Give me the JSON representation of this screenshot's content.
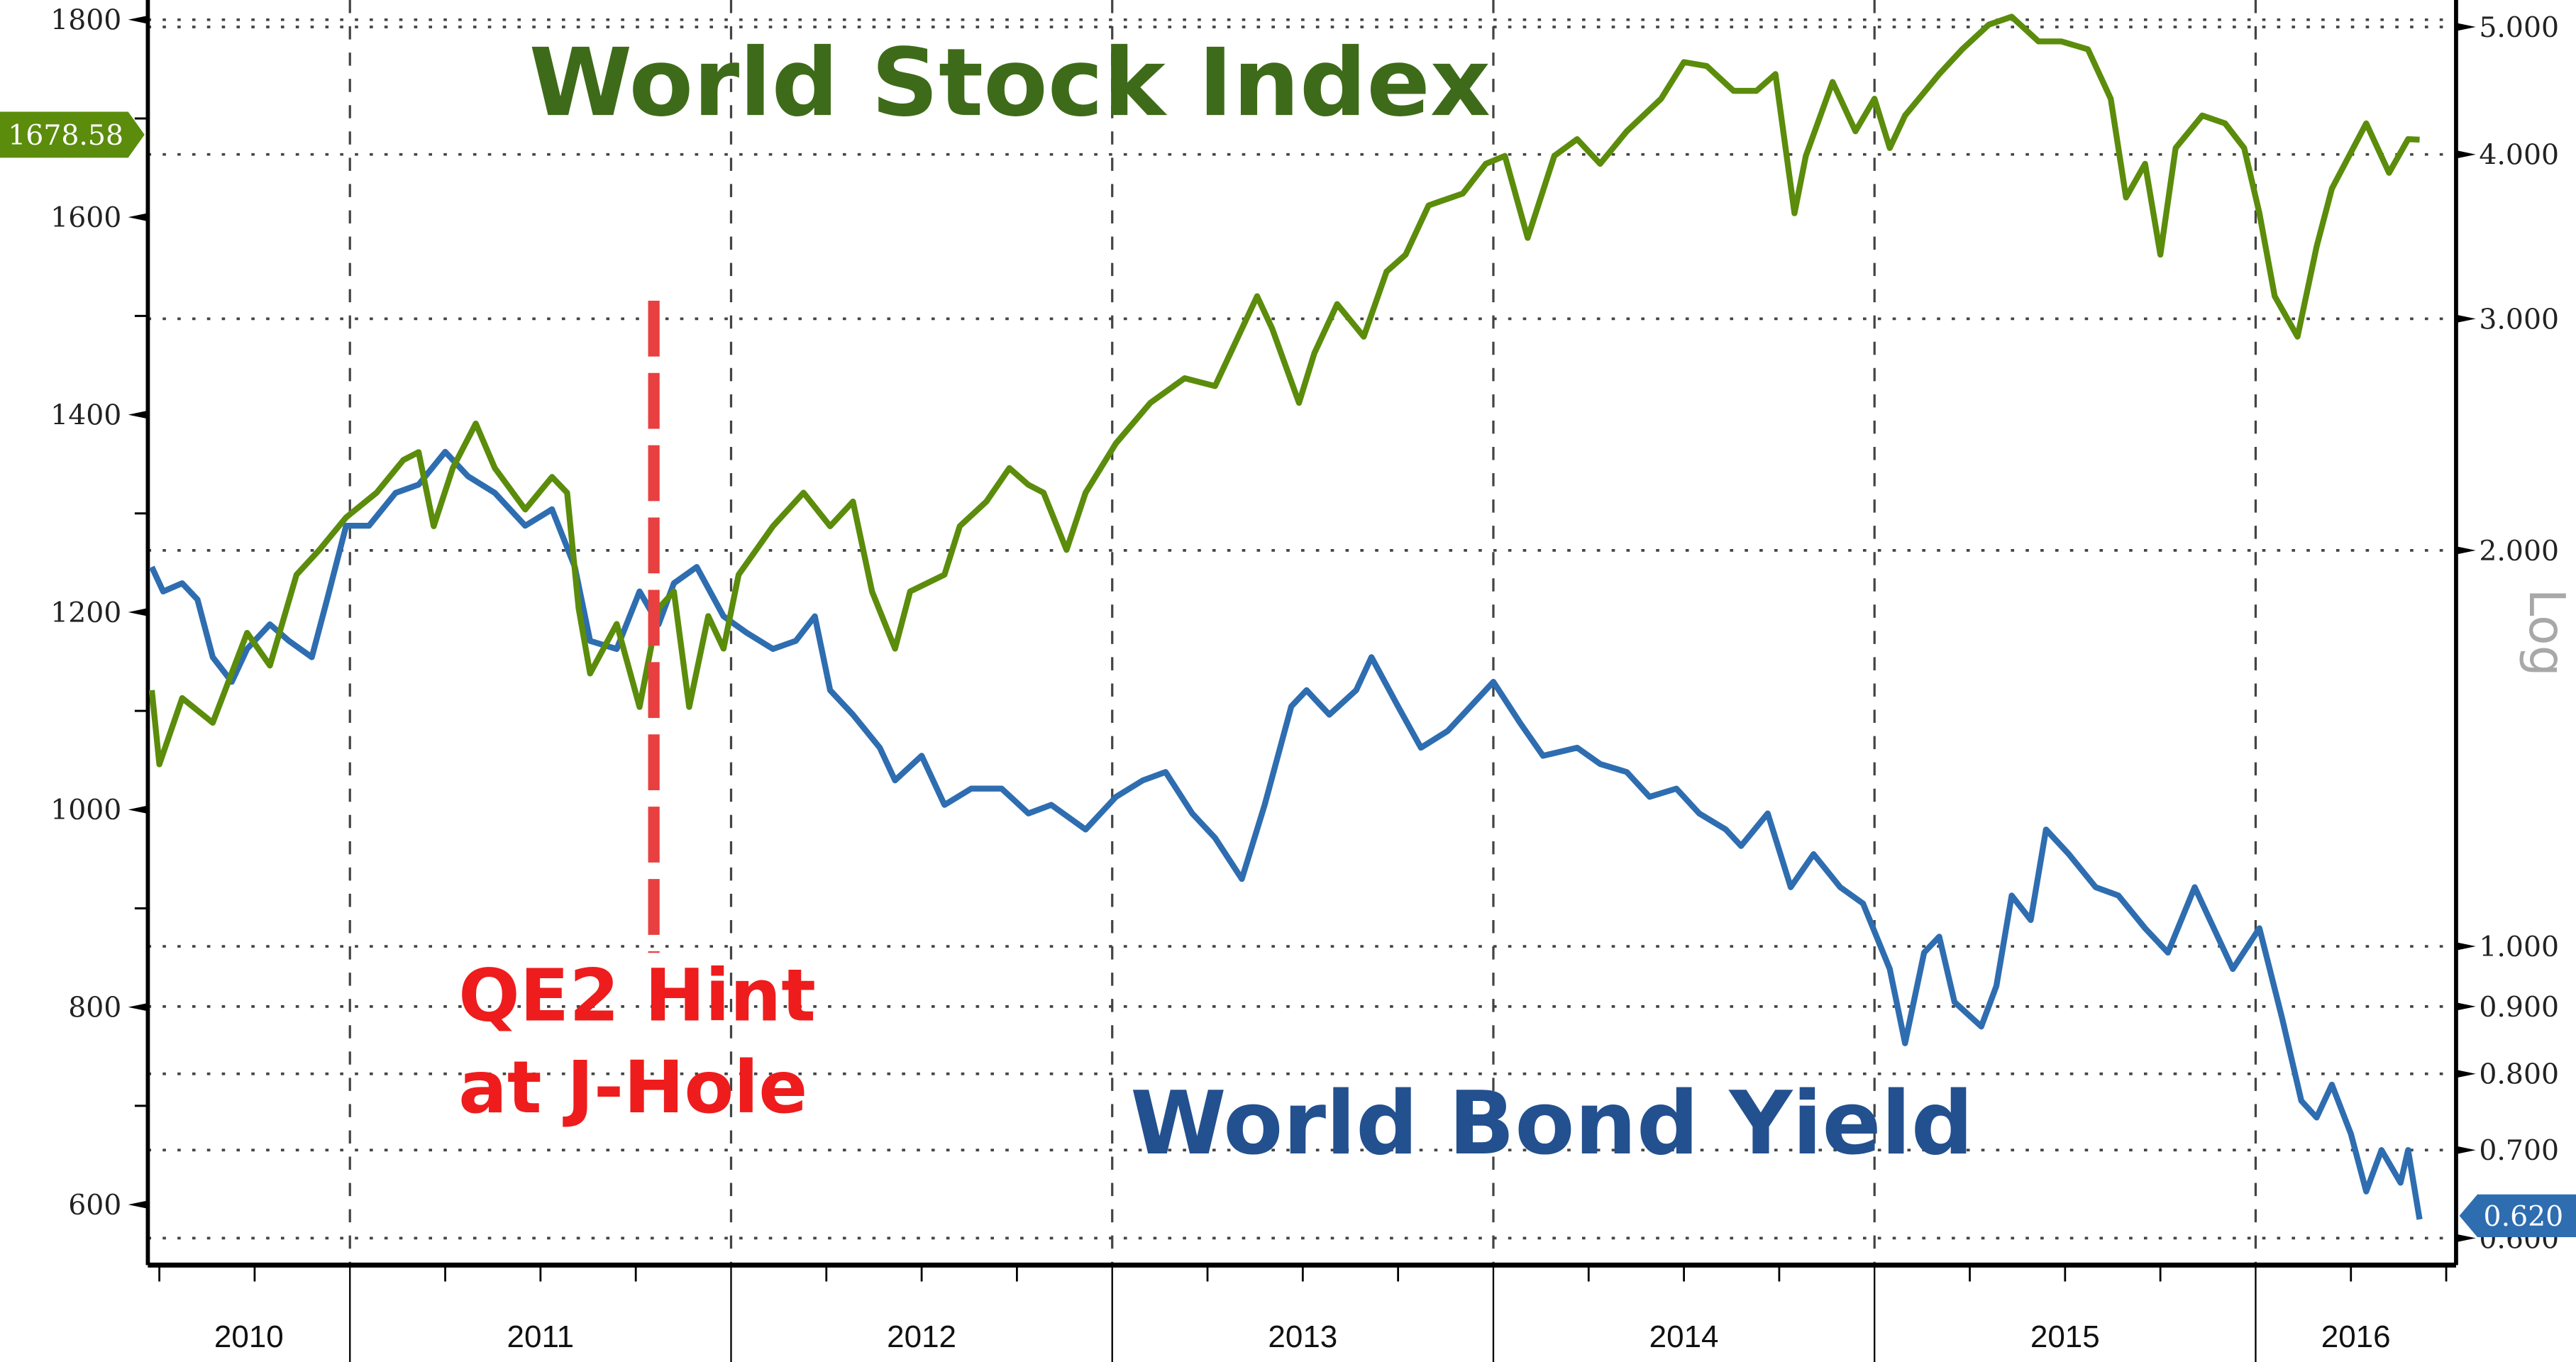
{
  "chart_data": {
    "type": "line",
    "title": "",
    "x_axis": {
      "type": "time",
      "tick_labels": [
        "2010",
        "2011",
        "2012",
        "2013",
        "2014",
        "2015",
        "2016"
      ],
      "range": [
        2010.47,
        2016.5
      ]
    },
    "y_left": {
      "range": [
        560,
        1800
      ],
      "tick_labels": [
        "1800",
        "1600",
        "1400",
        "1200",
        "1000",
        "800",
        "600"
      ],
      "ticks": [
        1800,
        1600,
        1400,
        1200,
        1000,
        800,
        600
      ]
    },
    "y_right": {
      "scale": "log",
      "label": "Log",
      "range": [
        0.57,
        5.2
      ],
      "tick_labels": [
        "5.000",
        "4.000",
        "3.000",
        "2.000",
        "1.000",
        "0.900",
        "0.800",
        "0.700",
        "0.600"
      ],
      "ticks": [
        5,
        4,
        3,
        2,
        1,
        0.9,
        0.8,
        0.7,
        0.6
      ]
    },
    "grid": true,
    "series": [
      {
        "name": "World Stock Index",
        "axis": "left",
        "color": "#5b8c0b",
        "last_value_label": "1678.58",
        "points": [
          [
            2010.48,
            1121
          ],
          [
            2010.5,
            1046
          ],
          [
            2010.56,
            1113
          ],
          [
            2010.64,
            1088
          ],
          [
            2010.73,
            1179
          ],
          [
            2010.79,
            1146
          ],
          [
            2010.86,
            1238
          ],
          [
            2010.92,
            1263
          ],
          [
            2010.99,
            1296
          ],
          [
            2011.07,
            1321
          ],
          [
            2011.14,
            1354
          ],
          [
            2011.18,
            1362
          ],
          [
            2011.22,
            1287
          ],
          [
            2011.27,
            1346
          ],
          [
            2011.33,
            1391
          ],
          [
            2011.38,
            1346
          ],
          [
            2011.46,
            1304
          ],
          [
            2011.53,
            1337
          ],
          [
            2011.57,
            1321
          ],
          [
            2011.6,
            1204
          ],
          [
            2011.63,
            1138
          ],
          [
            2011.7,
            1188
          ],
          [
            2011.76,
            1104
          ],
          [
            2011.81,
            1204
          ],
          [
            2011.85,
            1221
          ],
          [
            2011.89,
            1104
          ],
          [
            2011.94,
            1196
          ],
          [
            2011.98,
            1163
          ],
          [
            2012.02,
            1238
          ],
          [
            2012.11,
            1287
          ],
          [
            2012.19,
            1321
          ],
          [
            2012.26,
            1287
          ],
          [
            2012.32,
            1312
          ],
          [
            2012.37,
            1221
          ],
          [
            2012.43,
            1163
          ],
          [
            2012.47,
            1221
          ],
          [
            2012.56,
            1238
          ],
          [
            2012.6,
            1287
          ],
          [
            2012.67,
            1312
          ],
          [
            2012.73,
            1346
          ],
          [
            2012.78,
            1329
          ],
          [
            2012.82,
            1321
          ],
          [
            2012.88,
            1263
          ],
          [
            2012.93,
            1321
          ],
          [
            2013.01,
            1371
          ],
          [
            2013.1,
            1412
          ],
          [
            2013.19,
            1437
          ],
          [
            2013.27,
            1429
          ],
          [
            2013.31,
            1462
          ],
          [
            2013.38,
            1520
          ],
          [
            2013.42,
            1487
          ],
          [
            2013.49,
            1412
          ],
          [
            2013.53,
            1462
          ],
          [
            2013.59,
            1512
          ],
          [
            2013.66,
            1479
          ],
          [
            2013.72,
            1545
          ],
          [
            2013.77,
            1562
          ],
          [
            2013.83,
            1612
          ],
          [
            2013.92,
            1624
          ],
          [
            2013.98,
            1654
          ],
          [
            2014.03,
            1662
          ],
          [
            2014.09,
            1579
          ],
          [
            2014.16,
            1662
          ],
          [
            2014.22,
            1679
          ],
          [
            2014.28,
            1654
          ],
          [
            2014.35,
            1687
          ],
          [
            2014.44,
            1720
          ],
          [
            2014.5,
            1757
          ],
          [
            2014.56,
            1753
          ],
          [
            2014.63,
            1728
          ],
          [
            2014.69,
            1728
          ],
          [
            2014.74,
            1745
          ],
          [
            2014.79,
            1604
          ],
          [
            2014.82,
            1662
          ],
          [
            2014.89,
            1737
          ],
          [
            2014.95,
            1687
          ],
          [
            2015.0,
            1720
          ],
          [
            2015.04,
            1670
          ],
          [
            2015.08,
            1703
          ],
          [
            2015.17,
            1745
          ],
          [
            2015.23,
            1770
          ],
          [
            2015.3,
            1795
          ],
          [
            2015.36,
            1803
          ],
          [
            2015.43,
            1778
          ],
          [
            2015.49,
            1778
          ],
          [
            2015.56,
            1770
          ],
          [
            2015.62,
            1720
          ],
          [
            2015.66,
            1620
          ],
          [
            2015.71,
            1654
          ],
          [
            2015.75,
            1562
          ],
          [
            2015.79,
            1670
          ],
          [
            2015.86,
            1703
          ],
          [
            2015.92,
            1695
          ],
          [
            2015.97,
            1670
          ],
          [
            2016.01,
            1604
          ],
          [
            2016.05,
            1520
          ],
          [
            2016.11,
            1479
          ],
          [
            2016.16,
            1570
          ],
          [
            2016.2,
            1629
          ],
          [
            2016.29,
            1695
          ],
          [
            2016.35,
            1645
          ],
          [
            2016.4,
            1679
          ],
          [
            2016.43,
            1678.58
          ]
        ]
      },
      {
        "name": "World Bond Yield",
        "axis": "right",
        "color": "#2e6db0",
        "last_value_label": "0.620",
        "points": [
          [
            2010.48,
            1.943
          ],
          [
            2010.51,
            1.861
          ],
          [
            2010.56,
            1.888
          ],
          [
            2010.6,
            1.835
          ],
          [
            2010.64,
            1.659
          ],
          [
            2010.69,
            1.589
          ],
          [
            2010.73,
            1.683
          ],
          [
            2010.79,
            1.757
          ],
          [
            2010.84,
            1.707
          ],
          [
            2010.9,
            1.659
          ],
          [
            2010.94,
            1.835
          ],
          [
            2010.99,
            2.088
          ],
          [
            2011.05,
            2.088
          ],
          [
            2011.12,
            2.212
          ],
          [
            2011.18,
            2.244
          ],
          [
            2011.25,
            2.377
          ],
          [
            2011.31,
            2.277
          ],
          [
            2011.38,
            2.212
          ],
          [
            2011.46,
            2.088
          ],
          [
            2011.53,
            2.149
          ],
          [
            2011.59,
            1.943
          ],
          [
            2011.63,
            1.707
          ],
          [
            2011.7,
            1.683
          ],
          [
            2011.76,
            1.861
          ],
          [
            2011.81,
            1.757
          ],
          [
            2011.85,
            1.888
          ],
          [
            2011.91,
            1.943
          ],
          [
            2011.98,
            1.782
          ],
          [
            2012.04,
            1.732
          ],
          [
            2012.11,
            1.683
          ],
          [
            2012.17,
            1.707
          ],
          [
            2012.22,
            1.782
          ],
          [
            2012.26,
            1.566
          ],
          [
            2012.32,
            1.5
          ],
          [
            2012.39,
            1.416
          ],
          [
            2012.43,
            1.337
          ],
          [
            2012.5,
            1.396
          ],
          [
            2012.56,
            1.281
          ],
          [
            2012.63,
            1.318
          ],
          [
            2012.71,
            1.318
          ],
          [
            2012.78,
            1.262
          ],
          [
            2012.84,
            1.281
          ],
          [
            2012.93,
            1.227
          ],
          [
            2013.01,
            1.299
          ],
          [
            2013.08,
            1.337
          ],
          [
            2013.14,
            1.357
          ],
          [
            2013.21,
            1.262
          ],
          [
            2013.27,
            1.209
          ],
          [
            2013.34,
            1.125
          ],
          [
            2013.4,
            1.281
          ],
          [
            2013.47,
            1.522
          ],
          [
            2013.51,
            1.566
          ],
          [
            2013.57,
            1.5
          ],
          [
            2013.64,
            1.566
          ],
          [
            2013.68,
            1.659
          ],
          [
            2013.75,
            1.522
          ],
          [
            2013.81,
            1.416
          ],
          [
            2013.88,
            1.458
          ],
          [
            2013.94,
            1.522
          ],
          [
            2014.0,
            1.589
          ],
          [
            2014.07,
            1.479
          ],
          [
            2014.13,
            1.396
          ],
          [
            2014.22,
            1.416
          ],
          [
            2014.28,
            1.376
          ],
          [
            2014.35,
            1.357
          ],
          [
            2014.41,
            1.299
          ],
          [
            2014.48,
            1.318
          ],
          [
            2014.54,
            1.262
          ],
          [
            2014.61,
            1.227
          ],
          [
            2014.65,
            1.192
          ],
          [
            2014.72,
            1.262
          ],
          [
            2014.78,
            1.109
          ],
          [
            2014.84,
            1.175
          ],
          [
            2014.91,
            1.109
          ],
          [
            2014.97,
            1.078
          ],
          [
            2015.04,
            0.961
          ],
          [
            2015.08,
            0.844
          ],
          [
            2015.13,
            0.989
          ],
          [
            2015.17,
            1.017
          ],
          [
            2015.21,
            0.907
          ],
          [
            2015.28,
            0.869
          ],
          [
            2015.32,
            0.933
          ],
          [
            2015.36,
            1.093
          ],
          [
            2015.41,
            1.047
          ],
          [
            2015.45,
            1.227
          ],
          [
            2015.51,
            1.175
          ],
          [
            2015.58,
            1.109
          ],
          [
            2015.64,
            1.093
          ],
          [
            2015.71,
            1.032
          ],
          [
            2015.77,
            0.989
          ],
          [
            2015.84,
            1.109
          ],
          [
            2015.88,
            1.047
          ],
          [
            2015.94,
            0.961
          ],
          [
            2016.01,
            1.032
          ],
          [
            2016.07,
            0.881
          ],
          [
            2016.12,
            0.763
          ],
          [
            2016.16,
            0.741
          ],
          [
            2016.2,
            0.785
          ],
          [
            2016.25,
            0.72
          ],
          [
            2016.29,
            0.651
          ],
          [
            2016.33,
            0.7
          ],
          [
            2016.38,
            0.661
          ],
          [
            2016.4,
            0.7
          ],
          [
            2016.43,
            0.62
          ]
        ]
      }
    ],
    "annotations": [
      {
        "text": "World Stock Index",
        "color": "#3e6b19"
      },
      {
        "text": "World Bond Yield",
        "color": "#23508f"
      },
      {
        "text_lines": [
          "QE2 Hint",
          "at J-Hole"
        ],
        "color": "#ee1c1c",
        "marker": {
          "type": "vertical-dashed-line",
          "x": 2011.79,
          "color": "#e84040"
        }
      }
    ]
  }
}
